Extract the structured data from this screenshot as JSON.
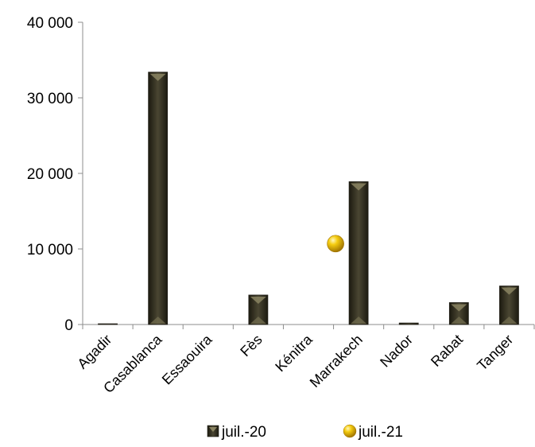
{
  "chart_data": {
    "type": "bar",
    "categories": [
      "Agadir",
      "Casablanca",
      "Essaouira",
      "Fès",
      "Kénitra",
      "Marrakech",
      "Nador",
      "Rabat",
      "Tanger"
    ],
    "series": [
      {
        "name": "juil.-20",
        "kind": "bar",
        "color": "#3d3a28",
        "values": [
          100,
          33400,
          0,
          3900,
          0,
          18900,
          200,
          2900,
          5100
        ]
      },
      {
        "name": "juil.-21",
        "kind": "point",
        "color": "#e8b800",
        "values": [
          null,
          null,
          null,
          null,
          null,
          10700,
          null,
          null,
          null
        ]
      }
    ],
    "y_ticks": [
      0,
      10000,
      20000,
      30000,
      40000
    ],
    "y_tick_labels": [
      "0",
      "10 000",
      "20 000",
      "30 000",
      "40 000"
    ],
    "ylim": [
      0,
      40000
    ],
    "title": "",
    "xlabel": "",
    "ylabel": "",
    "grid": false,
    "legend_position": "bottom"
  }
}
